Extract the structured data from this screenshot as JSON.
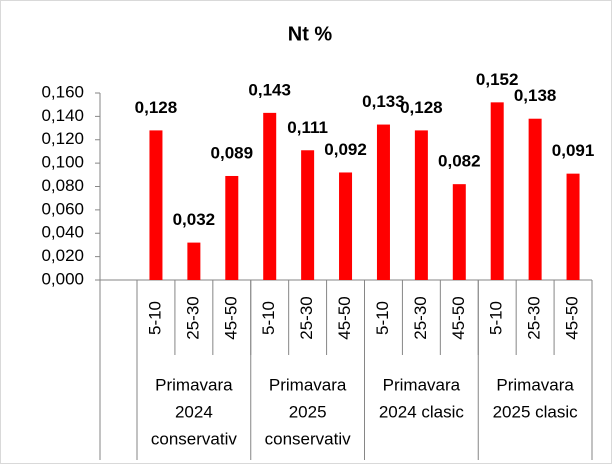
{
  "chart_data": {
    "type": "bar",
    "title": "Nt %",
    "categories": [
      "5-10",
      "25-30",
      "45-50",
      "5-10",
      "25-30",
      "45-50",
      "5-10",
      "25-30",
      "45-50",
      "5-10",
      "25-30",
      "45-50"
    ],
    "groups": [
      {
        "lines": [
          "Primavara",
          "2024",
          "conservativ"
        ],
        "size": 3
      },
      {
        "lines": [
          "Primavara",
          "2025",
          "conservativ"
        ],
        "size": 3
      },
      {
        "lines": [
          "Primavara",
          "2024 clasic"
        ],
        "size": 3
      },
      {
        "lines": [
          "Primavara",
          "2025 clasic"
        ],
        "size": 3
      }
    ],
    "values": [
      0.128,
      0.032,
      0.089,
      0.143,
      0.111,
      0.092,
      0.133,
      0.128,
      0.082,
      0.152,
      0.138,
      0.091
    ],
    "value_labels": [
      "0,128",
      "0,032",
      "0,089",
      "0,143",
      "0,111",
      "0,092",
      "0,133",
      "0,128",
      "0,082",
      "0,152",
      "0,138",
      "0,091"
    ],
    "color": "#ff0000",
    "ylim": [
      0,
      0.16
    ],
    "yticks": [
      {
        "value": 0,
        "label": "0,000"
      },
      {
        "value": 0.02,
        "label": "0,020"
      },
      {
        "value": 0.04,
        "label": "0,040"
      },
      {
        "value": 0.06,
        "label": "0,060"
      },
      {
        "value": 0.08,
        "label": "0,080"
      },
      {
        "value": 0.1,
        "label": "0,100"
      },
      {
        "value": 0.12,
        "label": "0,120"
      },
      {
        "value": 0.14,
        "label": "0,140"
      },
      {
        "value": 0.16,
        "label": "0,160"
      }
    ],
    "grid": false
  }
}
